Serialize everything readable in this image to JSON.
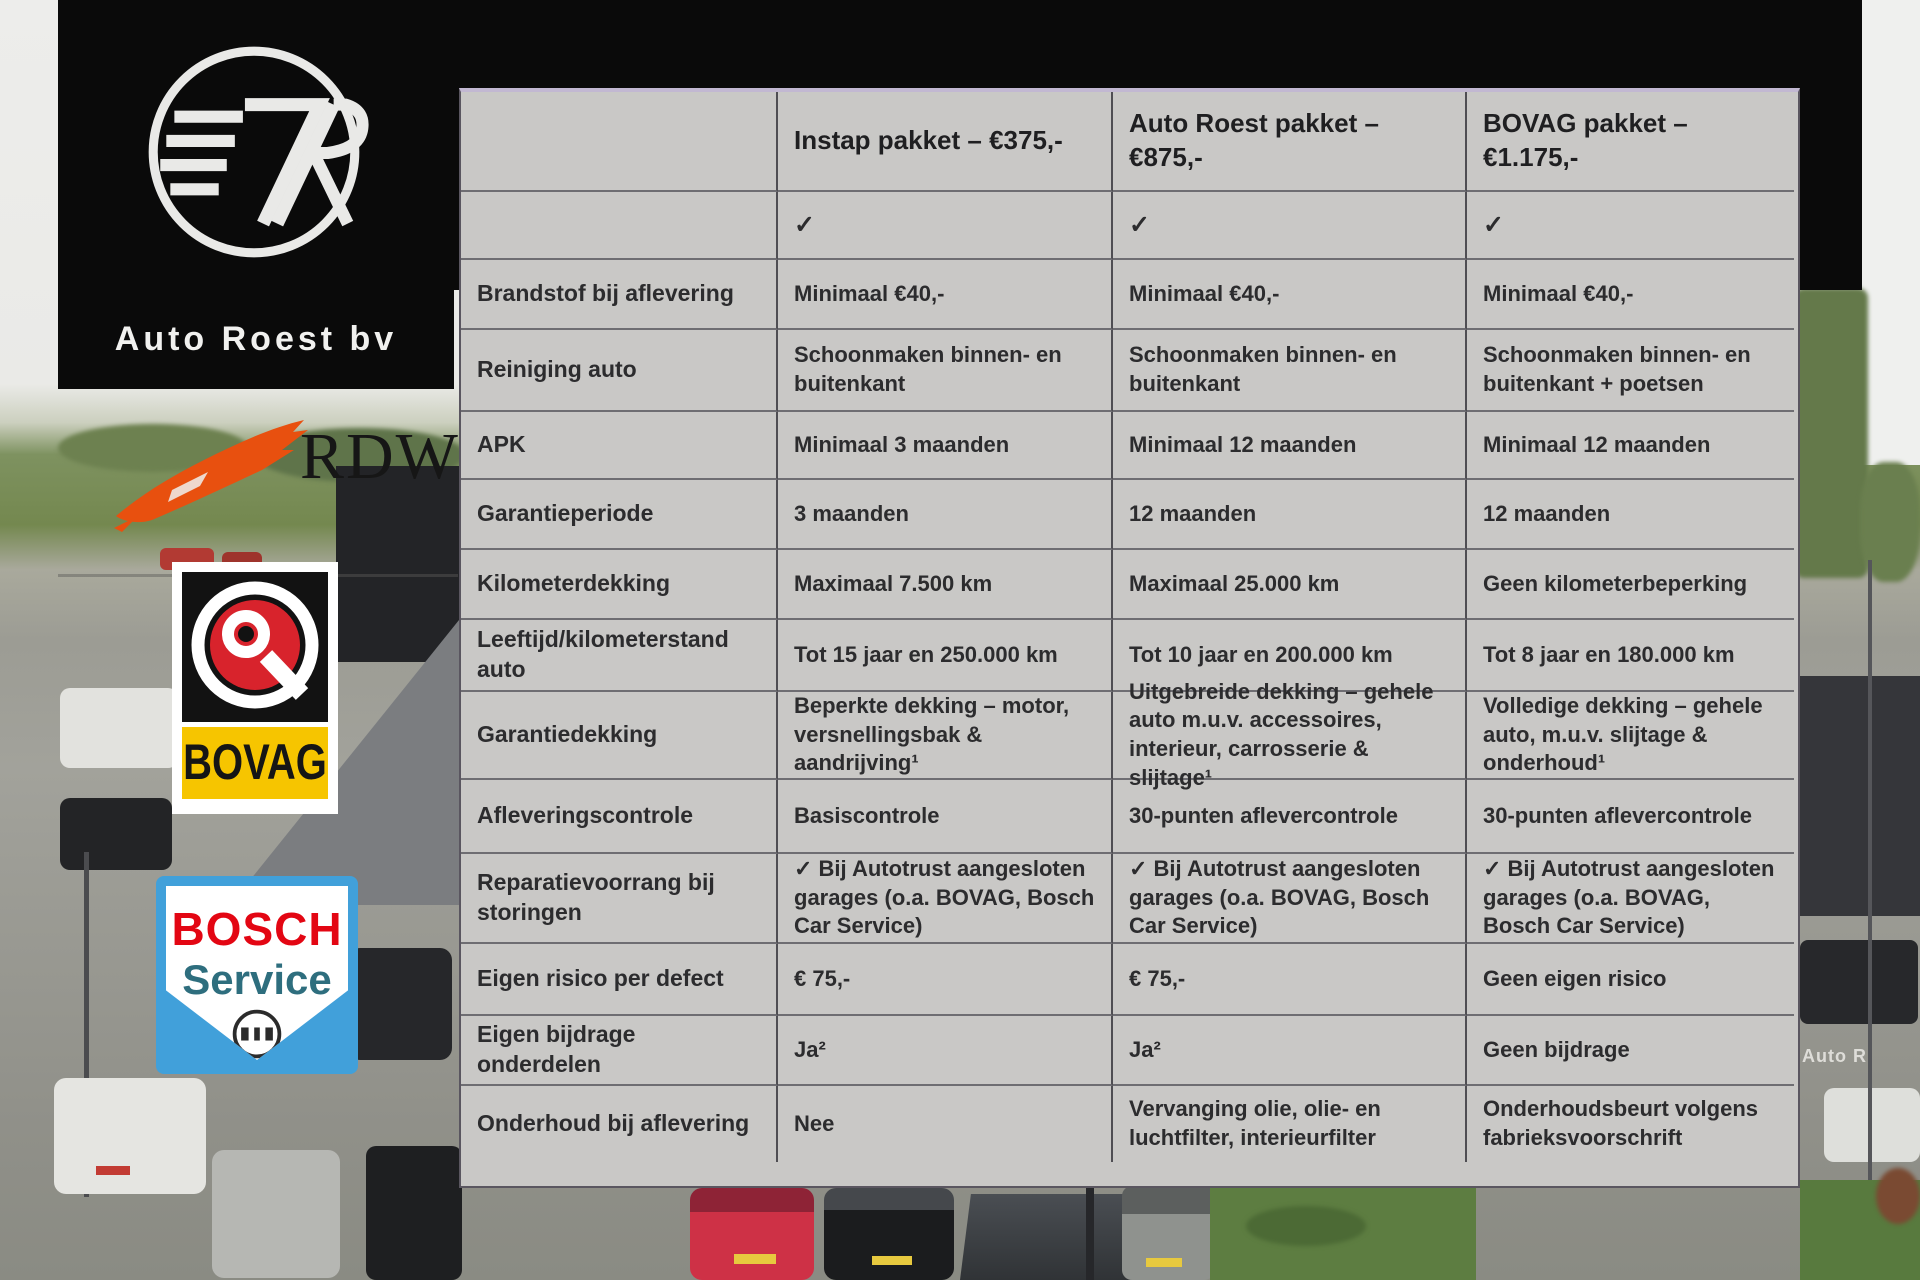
{
  "brand": {
    "name": "Auto Roest bv",
    "monogram": "7R"
  },
  "partner_logos": {
    "rdw": {
      "text": "RDW"
    },
    "bovag": {
      "text": "BOVAG"
    },
    "bosch": {
      "line1": "BOSCH",
      "line2": "Service"
    },
    "building_sign_fragment": "Auto R"
  },
  "colors": {
    "rdw_orange": "#e8500f",
    "bovag_yellow": "#f6c500",
    "bovag_red": "#d8232c",
    "bosch_blue": "#41a0da",
    "bosch_red": "#e30613",
    "bosch_teal": "#2e6e7e",
    "table_bg": "#c9c8c6",
    "band_black": "#0a0a0a"
  },
  "table": {
    "headers": [
      "",
      "Instap pakket – €375,-",
      "Auto Roest pakket – €875,-",
      "BOVAG pakket – €1.175,-"
    ],
    "rows": [
      {
        "label": "",
        "values": [
          "✓",
          "✓",
          "✓"
        ]
      },
      {
        "label": "Brandstof bij aflevering",
        "values": [
          "Minimaal €40,-",
          "Minimaal €40,-",
          "Minimaal €40,-"
        ]
      },
      {
        "label": "Reiniging auto",
        "values": [
          "Schoonmaken binnen- en buitenkant",
          "Schoonmaken binnen- en buitenkant",
          "Schoonmaken binnen- en buitenkant + poetsen"
        ]
      },
      {
        "label": "APK",
        "values": [
          "Minimaal 3 maanden",
          "Minimaal 12 maanden",
          "Minimaal 12 maanden"
        ]
      },
      {
        "label": "Garantieperiode",
        "values": [
          "3 maanden",
          "12 maanden",
          "12 maanden"
        ]
      },
      {
        "label": "Kilometerdekking",
        "values": [
          "Maximaal 7.500 km",
          "Maximaal 25.000 km",
          "Geen kilometerbeperking"
        ]
      },
      {
        "label": "Leeftijd/kilometerstand auto",
        "values": [
          "Tot 15 jaar en 250.000 km",
          "Tot 10 jaar en 200.000 km",
          "Tot 8 jaar en 180.000 km"
        ]
      },
      {
        "label": "Garantiedekking",
        "values": [
          "Beperkte dekking – motor, versnellingsbak & aandrijving¹",
          "Uitgebreide dekking – gehele auto m.u.v. accessoires, interieur, carrosserie & slijtage¹",
          "Volledige dekking – gehele auto, m.u.v. slijtage & onderhoud¹"
        ]
      },
      {
        "label": "Afleveringscontrole",
        "values": [
          "Basiscontrole",
          "30-punten aflevercontrole",
          "30-punten aflevercontrole"
        ]
      },
      {
        "label": "Reparatievoorrang bij storingen",
        "values": [
          "✓ Bij Autotrust aangesloten garages (o.a. BOVAG, Bosch Car Service)",
          "✓ Bij Autotrust aangesloten garages (o.a. BOVAG, Bosch Car Service)",
          "✓ Bij Autotrust aangesloten garages (o.a. BOVAG, Bosch Car Service)"
        ]
      },
      {
        "label": "Eigen risico per defect",
        "values": [
          "€ 75,-",
          "€ 75,-",
          "Geen eigen risico"
        ]
      },
      {
        "label": "Eigen bijdrage onderdelen",
        "values": [
          "Ja²",
          "Ja²",
          "Geen bijdrage"
        ]
      },
      {
        "label": "Onderhoud bij aflevering",
        "values": [
          "Nee",
          "Vervanging olie, olie- en luchtfilter, interieurfilter",
          "Onderhoudsbeurt volgens fabrieksvoorschrift"
        ]
      }
    ]
  }
}
